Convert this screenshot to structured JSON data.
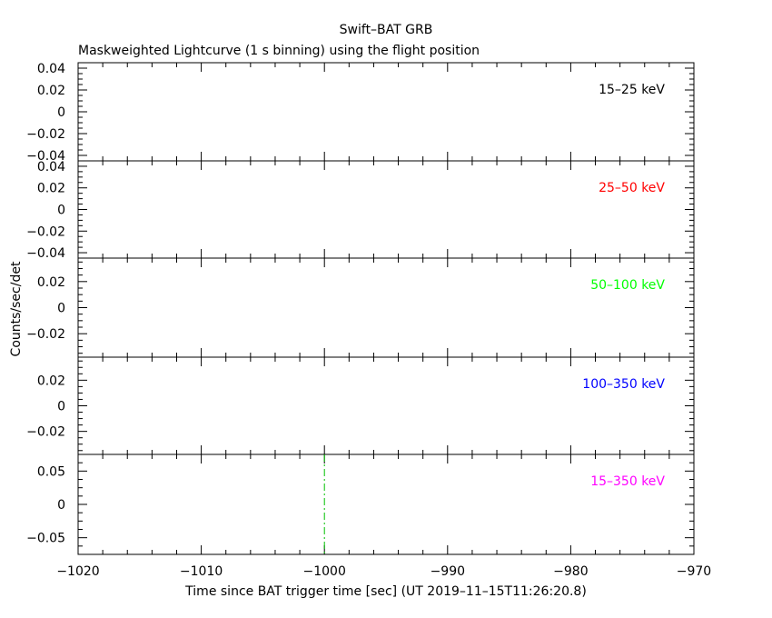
{
  "chart_data": {
    "type": "line",
    "title": "Swift–BAT GRB",
    "subtitle": "Maskweighted Lightcurve (1 s binning) using the flight position",
    "xlabel": "Time since BAT trigger time [sec] (UT 2019–11–15T11:26:20.8)",
    "ylabel": "Counts/sec/det",
    "xlim": [
      -1020,
      -970
    ],
    "x_ticks": [
      -1020,
      -1010,
      -1000,
      -990,
      -980,
      -970
    ],
    "x_tick_labels": [
      "−1020",
      "−1010",
      "−1000",
      "−990",
      "−980",
      "−970"
    ],
    "trigger_marker": {
      "x": -1000,
      "color": "#00c000",
      "style": "dash-dot"
    },
    "panels": [
      {
        "band": "15–25 keV",
        "color": "#000000",
        "ylim": [
          -0.045,
          0.045
        ],
        "y_ticks": [
          -0.04,
          -0.02,
          0,
          0.02,
          0.04
        ],
        "y_tick_labels": [
          "−0.04",
          "−0.02",
          "0",
          "0.02",
          "0.04"
        ],
        "series": []
      },
      {
        "band": "25–50 keV",
        "color": "#ff0000",
        "ylim": [
          -0.045,
          0.045
        ],
        "y_ticks": [
          -0.04,
          -0.02,
          0,
          0.02,
          0.04
        ],
        "y_tick_labels": [
          "−0.04",
          "−0.02",
          "0",
          "0.02",
          "0.04"
        ],
        "series": []
      },
      {
        "band": "50–100 keV",
        "color": "#00ff00",
        "ylim": [
          -0.038,
          0.038
        ],
        "y_ticks": [
          -0.02,
          0,
          0.02
        ],
        "y_tick_labels": [
          "−0.02",
          "0",
          "0.02"
        ],
        "series": []
      },
      {
        "band": "100–350 keV",
        "color": "#0000ff",
        "ylim": [
          -0.038,
          0.038
        ],
        "y_ticks": [
          -0.02,
          0,
          0.02
        ],
        "y_tick_labels": [
          "−0.02",
          "0",
          "0.02"
        ],
        "series": []
      },
      {
        "band": "15–350 keV",
        "color": "#ff00ff",
        "ylim": [
          -0.075,
          0.075
        ],
        "y_ticks": [
          -0.05,
          0,
          0.05
        ],
        "y_tick_labels": [
          "−0.05",
          "0",
          "0.05"
        ],
        "series": []
      }
    ]
  }
}
